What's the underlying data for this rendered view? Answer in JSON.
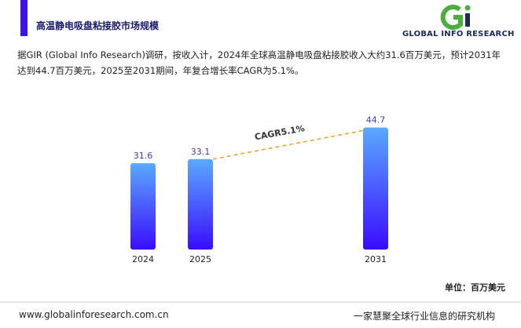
{
  "chart_data": {
    "type": "bar",
    "title": "高温静电吸盘粘接胶市场规模",
    "description": "据GIR (Global Info Research)调研，按收入计，2024年全球高温静电吸盘粘接胶收入大约31.6百万美元，预计2031年达到44.7百万美元，2025至2031期间，年复合增长率CAGR为5.1%。",
    "brand": "GLOBAL INFO RESEARCH",
    "categories": [
      "2024",
      "2025",
      "2031"
    ],
    "values": [
      31.6,
      33.1,
      44.7
    ],
    "annotation": "CAGR5.1%",
    "unit_label": "单位：百万美元",
    "footer_left": "www.globalinforesearch.com.cn",
    "footer_right": "一家慧聚全球行业信息的研究机构"
  }
}
